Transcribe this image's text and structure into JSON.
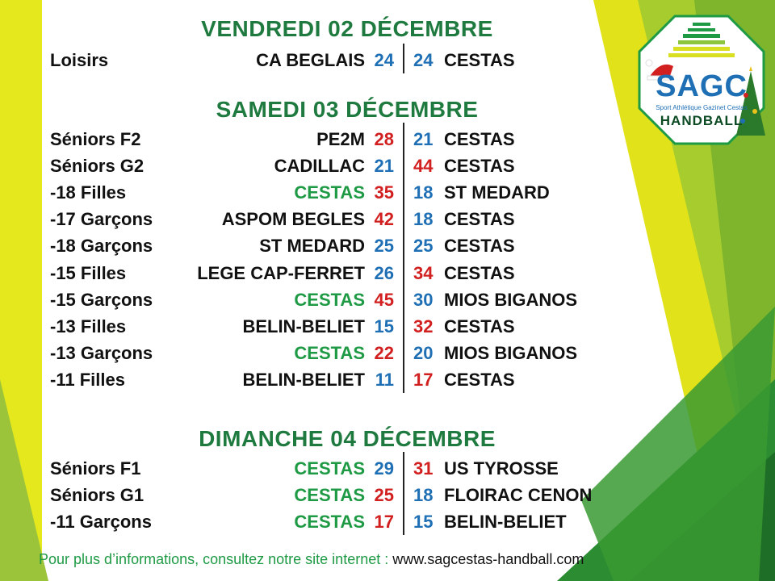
{
  "days": [
    {
      "title": "VENDREDI 02 DÉCEMBRE",
      "matches": [
        {
          "category": "Loisirs",
          "home": "CA BEGLAIS",
          "home_score": "24",
          "away_score": "24",
          "away": "CESTAS"
        }
      ]
    },
    {
      "title": "SAMEDI 03 DÉCEMBRE",
      "matches": [
        {
          "category": "Séniors F2",
          "home": "PE2M",
          "home_score": "28",
          "away_score": "21",
          "away": "CESTAS"
        },
        {
          "category": "Séniors G2",
          "home": "CADILLAC",
          "home_score": "21",
          "away_score": "44",
          "away": "CESTAS"
        },
        {
          "category": "-18 Filles",
          "home": "CESTAS",
          "home_score": "35",
          "away_score": "18",
          "away": "ST MEDARD"
        },
        {
          "category": "-17 Garçons",
          "home": "ASPOM BEGLES",
          "home_score": "42",
          "away_score": "18",
          "away": "CESTAS"
        },
        {
          "category": "-18 Garçons",
          "home": "ST MEDARD",
          "home_score": "25",
          "away_score": "25",
          "away": "CESTAS"
        },
        {
          "category": "-15 Filles",
          "home": "LEGE CAP-FERRET",
          "home_score": "26",
          "away_score": "34",
          "away": "CESTAS"
        },
        {
          "category": "-15 Garçons",
          "home": "CESTAS",
          "home_score": "45",
          "away_score": "30",
          "away": "MIOS BIGANOS"
        },
        {
          "category": "-13 Filles",
          "home": "BELIN-BELIET",
          "home_score": "15",
          "away_score": "32",
          "away": "CESTAS"
        },
        {
          "category": "-13 Garçons",
          "home": "CESTAS",
          "home_score": "22",
          "away_score": "20",
          "away": "MIOS BIGANOS"
        },
        {
          "category": "-11 Filles",
          "home": "BELIN-BELIET",
          "home_score": "11",
          "away_score": "17",
          "away": "CESTAS"
        }
      ]
    },
    {
      "title": "DIMANCHE 04 DÉCEMBRE",
      "matches": [
        {
          "category": "Séniors F1",
          "home": "CESTAS",
          "home_score": "29",
          "away_score": "31",
          "away": "US TYROSSE"
        },
        {
          "category": "Séniors G1",
          "home": "CESTAS",
          "home_score": "25",
          "away_score": "18",
          "away": "FLOIRAC CENON"
        },
        {
          "category": "-11 Garçons",
          "home": "CESTAS",
          "home_score": "17",
          "away_score": "15",
          "away": "BELIN-BELIET"
        }
      ]
    }
  ],
  "footer": {
    "text": "Pour plus d’informations, consultez notre site internet : ",
    "url": "www.sagcestas-handball.com"
  },
  "logo": {
    "name": "SAGC",
    "subtitle": "Sport Athlétique Gazinet Cestas",
    "sport": "HANDBALL"
  },
  "colors": {
    "title_green": "#1f7a3f",
    "cestas_green": "#1e9a45",
    "score_win_red": "#d21f1f",
    "score_loss_blue": "#1f6fb5",
    "decor_yellow": "#e8e61a",
    "decor_green": "#2f8f2f"
  }
}
